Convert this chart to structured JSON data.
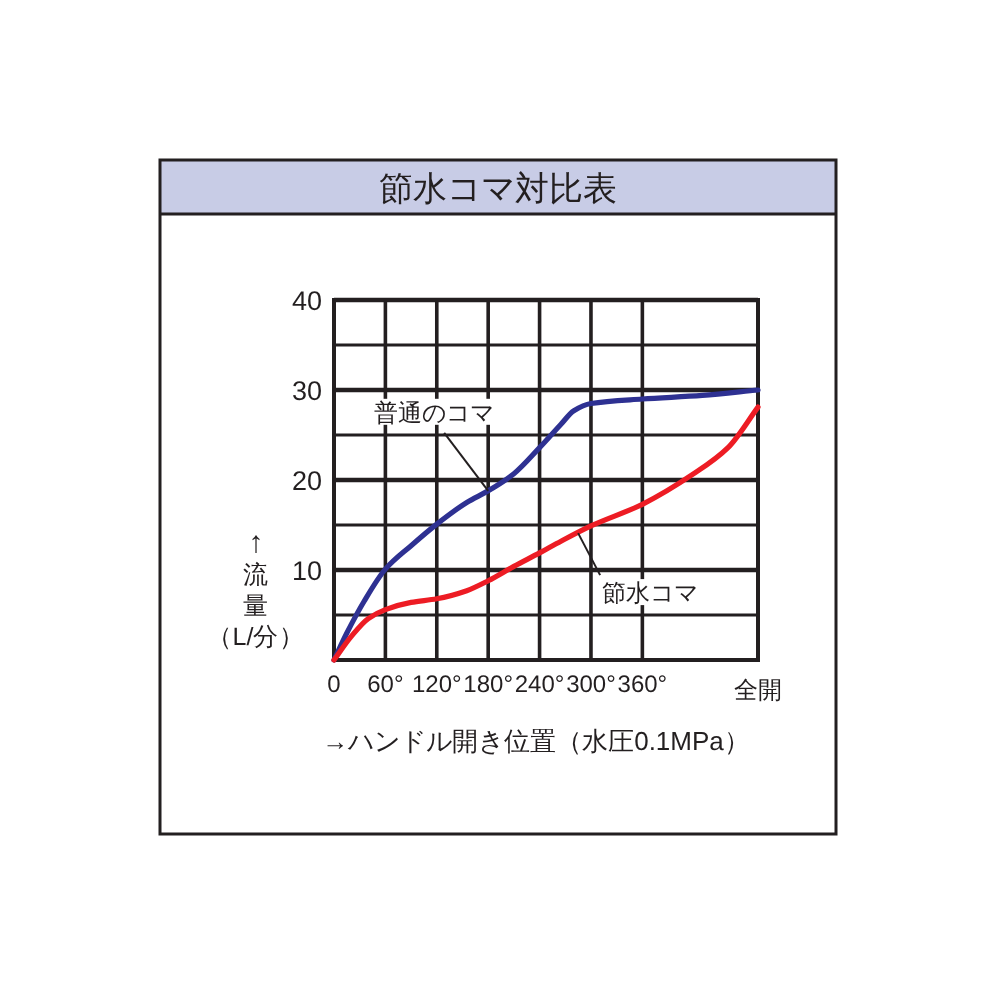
{
  "chart_data": {
    "type": "line",
    "title": "節水コマ対比表",
    "xlabel": "→ハンドル開き位置（水圧0.1MPa）",
    "ylabel": "↑流量（L/分）",
    "xlim": [
      0,
      495
    ],
    "ylim": [
      0,
      40
    ],
    "xticks": [
      0,
      {
        "value": 60,
        "label": "60°"
      },
      {
        "value": 120,
        "label": "120°"
      },
      {
        "value": 180,
        "label": "180°"
      },
      {
        "value": 240,
        "label": "240°"
      },
      {
        "value": 300,
        "label": "300°"
      },
      {
        "value": 360,
        "label": "360°"
      },
      {
        "value": 495,
        "label": "全開"
      }
    ],
    "yticks": [
      {
        "value": 5,
        "label": null
      },
      10,
      {
        "value": 15,
        "label": null
      },
      20,
      {
        "value": 25,
        "label": null
      },
      30,
      {
        "value": 35,
        "label": null
      },
      40
    ],
    "grid": true,
    "series": [
      {
        "color": "#2e3192",
        "x": [
          0,
          15,
          35,
          60,
          90,
          120,
          155,
          180,
          210,
          240,
          265,
          280,
          300,
          360,
          430,
          495
        ],
        "values": [
          0,
          3,
          6.5,
          10.1,
          12.7,
          15.1,
          17.5,
          18.8,
          20.7,
          23.6,
          26.2,
          27.7,
          28.5,
          29,
          29.4,
          30
        ]
      },
      {
        "color": "#ed1c24",
        "x": [
          0,
          20,
          40,
          60,
          90,
          120,
          155,
          180,
          210,
          240,
          265,
          300,
          360,
          420,
          460,
          495
        ],
        "values": [
          0,
          2.6,
          4.6,
          5.6,
          6.4,
          6.8,
          7.7,
          8.8,
          10.4,
          11.9,
          13.2,
          14.9,
          17.3,
          20.7,
          23.6,
          28.1
        ]
      }
    ],
    "annotations": [
      {
        "text": "普通のコマ",
        "x": 180,
        "y": 18.8
      },
      {
        "text": "節水コマ",
        "x": 285,
        "y": 14.1
      }
    ]
  }
}
